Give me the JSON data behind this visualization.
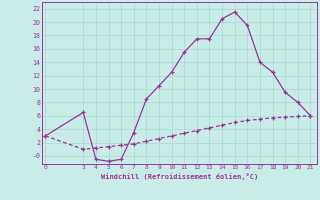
{
  "xlabel": "Windchill (Refroidissement éolien,°C)",
  "bg_color": "#c8ede8",
  "line_color": "#993399",
  "grid_color": "#b0ddd8",
  "x_main": [
    0,
    3,
    4,
    5,
    6,
    7,
    8,
    9,
    10,
    11,
    12,
    13,
    14,
    15,
    16,
    17,
    18,
    19,
    20,
    21
  ],
  "y_main": [
    3.0,
    6.5,
    -0.5,
    -0.8,
    -0.5,
    3.5,
    8.5,
    10.5,
    12.5,
    15.5,
    17.5,
    17.5,
    20.5,
    21.5,
    19.5,
    14.0,
    12.5,
    9.5,
    8.0,
    6.0
  ],
  "x_diag": [
    0,
    3,
    4,
    5,
    6,
    7,
    8,
    9,
    10,
    11,
    12,
    13,
    14,
    15,
    16,
    17,
    18,
    19,
    20,
    21
  ],
  "y_diag": [
    3.0,
    1.0,
    1.2,
    1.4,
    1.6,
    1.8,
    2.2,
    2.6,
    3.0,
    3.4,
    3.8,
    4.2,
    4.6,
    5.0,
    5.3,
    5.5,
    5.7,
    5.8,
    5.9,
    6.0
  ],
  "xlim": [
    -0.3,
    21.5
  ],
  "ylim": [
    -1.2,
    23.0
  ],
  "ytick_vals": [
    0,
    2,
    4,
    6,
    8,
    10,
    12,
    14,
    16,
    18,
    20,
    22
  ],
  "ytick_labels": [
    "-0",
    "2",
    "4",
    "6",
    "8",
    "10",
    "12",
    "14",
    "16",
    "18",
    "20",
    "22"
  ],
  "xticks": [
    0,
    3,
    4,
    5,
    6,
    7,
    8,
    9,
    10,
    11,
    12,
    13,
    14,
    15,
    16,
    17,
    18,
    19,
    20,
    21
  ]
}
